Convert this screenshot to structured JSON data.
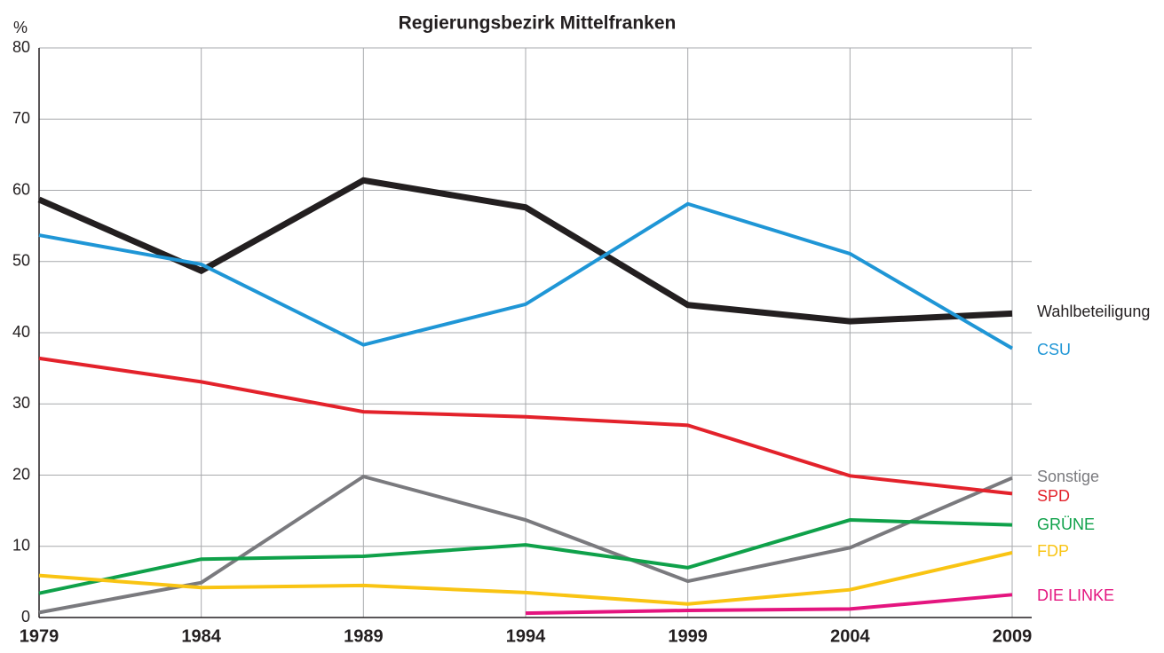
{
  "chart_data": {
    "type": "line",
    "title": "Regierungsbezirk Mittelfranken",
    "y_label": "%",
    "x": [
      1979,
      1984,
      1989,
      1994,
      1999,
      2004,
      2009
    ],
    "xlim": [
      1979,
      2009
    ],
    "xticks": [
      1979,
      1984,
      1989,
      1994,
      1999,
      2004,
      2009
    ],
    "ylim": [
      0,
      80
    ],
    "yticks": [
      0,
      10,
      20,
      30,
      40,
      50,
      60,
      70,
      80
    ],
    "grid": true,
    "series": [
      {
        "name": "Wahlbeteiligung",
        "color": "#231f20",
        "values": [
          58.7,
          48.7,
          61.4,
          57.6,
          43.9,
          41.6,
          42.7
        ]
      },
      {
        "name": "CSU",
        "color": "#1f96d6",
        "values": [
          53.7,
          49.6,
          38.3,
          44.0,
          58.1,
          51.1,
          37.8
        ]
      },
      {
        "name": "Sonstige",
        "color": "#7a7a7e",
        "values": [
          0.7,
          4.9,
          19.8,
          13.7,
          5.1,
          9.8,
          19.6
        ]
      },
      {
        "name": "SPD",
        "color": "#e3222b",
        "values": [
          36.4,
          33.1,
          28.9,
          28.2,
          27.0,
          19.9,
          17.4
        ]
      },
      {
        "name": "GRÜNE",
        "color": "#0fa14a",
        "values": [
          3.4,
          8.2,
          8.6,
          10.2,
          7.0,
          13.7,
          13.0
        ]
      },
      {
        "name": "FDP",
        "color": "#f9c413",
        "values": [
          5.9,
          4.2,
          4.5,
          3.5,
          1.9,
          3.9,
          9.1
        ]
      },
      {
        "name": "DIE LINKE",
        "color": "#e4157f",
        "values": [
          null,
          null,
          null,
          0.6,
          1.0,
          1.2,
          3.2
        ]
      }
    ]
  }
}
